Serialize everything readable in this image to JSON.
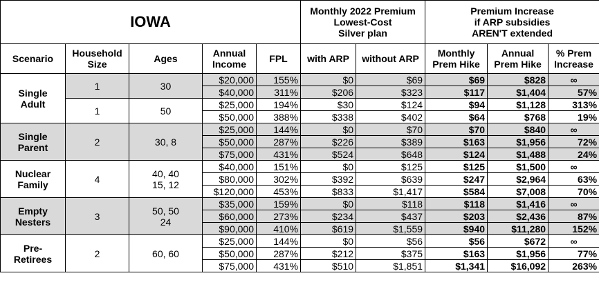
{
  "header": {
    "title": "IOWA",
    "premium_group": [
      "Monthly 2022 Premium",
      "Lowest-Cost",
      "Silver plan"
    ],
    "increase_group": [
      "Premium Increase",
      "if ARP subsidies",
      "AREN'T extended"
    ],
    "columns": [
      [
        "Scenario"
      ],
      [
        "Household",
        "Size"
      ],
      [
        "Ages"
      ],
      [
        "Annual",
        "Income"
      ],
      [
        "FPL"
      ],
      [
        "with ARP"
      ],
      [
        "without ARP"
      ],
      [
        "Monthly",
        "Prem Hike"
      ],
      [
        "Annual",
        "Prem Hike"
      ],
      [
        "% Prem",
        "Increase"
      ]
    ]
  },
  "groups": [
    {
      "scenario": [
        "Single",
        "Adult"
      ],
      "subgroups": [
        {
          "size": "1",
          "ages": [
            "30"
          ],
          "rows": [
            [
              "$20,000",
              "155%",
              "$0",
              "$69",
              "$69",
              "$828",
              "∞"
            ],
            [
              "$40,000",
              "311%",
              "$206",
              "$323",
              "$117",
              "$1,404",
              "57%"
            ]
          ]
        },
        {
          "size": "1",
          "ages": [
            "50"
          ],
          "rows": [
            [
              "$25,000",
              "194%",
              "$30",
              "$124",
              "$94",
              "$1,128",
              "313%"
            ],
            [
              "$50,000",
              "388%",
              "$338",
              "$402",
              "$64",
              "$768",
              "19%"
            ]
          ]
        }
      ]
    },
    {
      "scenario": [
        "Single",
        "Parent"
      ],
      "subgroups": [
        {
          "size": "2",
          "ages": [
            "30, 8"
          ],
          "rows": [
            [
              "$25,000",
              "144%",
              "$0",
              "$70",
              "$70",
              "$840",
              "∞"
            ],
            [
              "$50,000",
              "287%",
              "$226",
              "$389",
              "$163",
              "$1,956",
              "72%"
            ],
            [
              "$75,000",
              "431%",
              "$524",
              "$648",
              "$124",
              "$1,488",
              "24%"
            ]
          ]
        }
      ]
    },
    {
      "scenario": [
        "Nuclear",
        "Family"
      ],
      "subgroups": [
        {
          "size": "4",
          "ages": [
            "40, 40",
            "15, 12"
          ],
          "rows": [
            [
              "$40,000",
              "151%",
              "$0",
              "$125",
              "$125",
              "$1,500",
              "∞"
            ],
            [
              "$80,000",
              "302%",
              "$392",
              "$639",
              "$247",
              "$2,964",
              "63%"
            ],
            [
              "$120,000",
              "453%",
              "$833",
              "$1,417",
              "$584",
              "$7,008",
              "70%"
            ]
          ]
        }
      ]
    },
    {
      "scenario": [
        "Empty",
        "Nesters"
      ],
      "subgroups": [
        {
          "size": "3",
          "ages": [
            "50, 50",
            "24"
          ],
          "rows": [
            [
              "$35,000",
              "159%",
              "$0",
              "$118",
              "$118",
              "$1,416",
              "∞"
            ],
            [
              "$60,000",
              "273%",
              "$234",
              "$437",
              "$203",
              "$2,436",
              "87%"
            ],
            [
              "$90,000",
              "410%",
              "$619",
              "$1,559",
              "$940",
              "$11,280",
              "152%"
            ]
          ]
        }
      ]
    },
    {
      "scenario": [
        "Pre-",
        "Retirees"
      ],
      "subgroups": [
        {
          "size": "2",
          "ages": [
            "60, 60"
          ],
          "rows": [
            [
              "$25,000",
              "144%",
              "$0",
              "$56",
              "$56",
              "$672",
              "∞"
            ],
            [
              "$50,000",
              "287%",
              "$212",
              "$375",
              "$163",
              "$1,956",
              "77%"
            ],
            [
              "$75,000",
              "431%",
              "$510",
              "$1,851",
              "$1,341",
              "$16,092",
              "263%"
            ]
          ]
        }
      ]
    }
  ]
}
